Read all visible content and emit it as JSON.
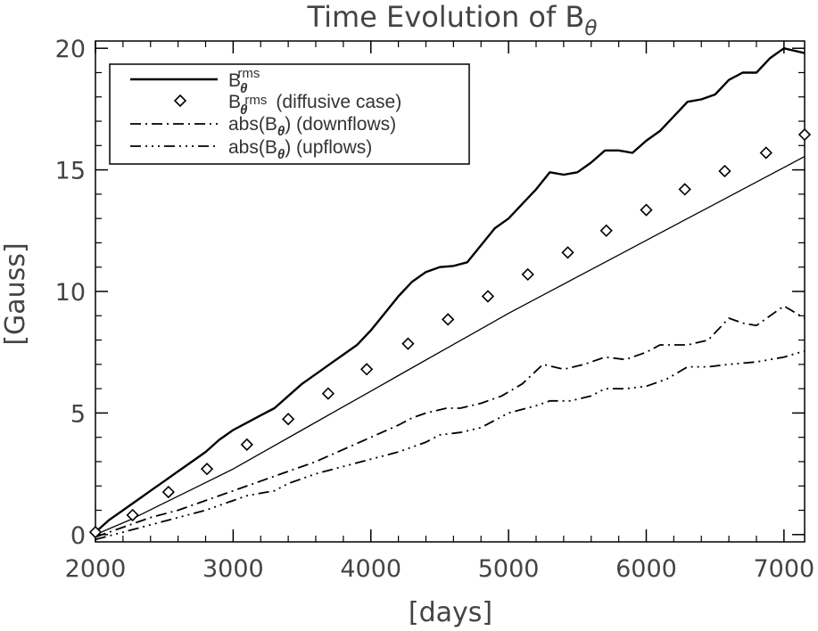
{
  "chart_data": {
    "type": "line",
    "title": "Time Evolution of B",
    "title_subscript": "θ",
    "xlabel": "[days]",
    "ylabel": "[Gauss]",
    "xlim": [
      2000,
      7150
    ],
    "ylim": [
      -0.3,
      20.3
    ],
    "x_ticks": [
      2000,
      3000,
      4000,
      5000,
      6000,
      7000
    ],
    "y_ticks": [
      0,
      5,
      10,
      15,
      20
    ],
    "x_tick_labels": [
      "2000",
      "3000",
      "4000",
      "5000",
      "6000",
      "7000"
    ],
    "y_tick_labels": [
      "0",
      "5",
      "10",
      "15",
      "20"
    ],
    "legend_position": "top-left",
    "series": [
      {
        "name": "B rms θ",
        "legend": {
          "base": "B",
          "sup": "rms",
          "sub": "θ",
          "suffix": ""
        },
        "style": "solid",
        "x": [
          2000,
          2100,
          2200,
          2300,
          2400,
          2500,
          2600,
          2700,
          2800,
          2900,
          3000,
          3100,
          3200,
          3300,
          3400,
          3500,
          3600,
          3700,
          3800,
          3900,
          4000,
          4100,
          4200,
          4300,
          4400,
          4500,
          4600,
          4700,
          4800,
          4900,
          5000,
          5100,
          5200,
          5300,
          5400,
          5500,
          5600,
          5700,
          5800,
          5900,
          6000,
          6100,
          6200,
          6300,
          6400,
          6500,
          6600,
          6700,
          6800,
          6900,
          7000,
          7150
        ],
        "y": [
          0.1,
          0.6,
          1.0,
          1.4,
          1.8,
          2.2,
          2.6,
          3.0,
          3.4,
          3.9,
          4.3,
          4.6,
          4.9,
          5.2,
          5.7,
          6.2,
          6.6,
          7.0,
          7.4,
          7.8,
          8.4,
          9.1,
          9.8,
          10.4,
          10.8,
          11.0,
          11.05,
          11.2,
          11.9,
          12.6,
          13.0,
          13.6,
          14.2,
          14.9,
          14.8,
          14.9,
          15.3,
          15.8,
          15.8,
          15.7,
          16.2,
          16.6,
          17.2,
          17.8,
          17.9,
          18.1,
          18.7,
          19.0,
          19.0,
          19.6,
          20.0,
          19.8
        ]
      },
      {
        "name": "B rms θ (diffusive case)",
        "legend": {
          "base": "B",
          "sup": "rms",
          "sub": "θ",
          "suffix": "(diffusive case)"
        },
        "style": "solid-thin-diamonds",
        "x": [
          2000,
          2250,
          2500,
          2750,
          3000,
          3250,
          3500,
          3750,
          4000,
          4250,
          4500,
          4750,
          5000,
          5250,
          5500,
          5750,
          6000,
          6250,
          6500,
          6750,
          7000,
          7150
        ],
        "y": [
          0.0,
          0.6,
          1.3,
          2.0,
          2.7,
          3.5,
          4.3,
          5.1,
          5.9,
          6.7,
          7.5,
          8.3,
          9.1,
          9.85,
          10.6,
          11.35,
          12.1,
          12.85,
          13.6,
          14.35,
          15.1,
          15.55
        ],
        "markers_x": [
          2000,
          2270,
          2530,
          2810,
          3100,
          3400,
          3690,
          3970,
          4270,
          4560,
          4850,
          5140,
          5430,
          5710,
          6000,
          6280,
          6570,
          6870,
          7150
        ],
        "markers_y": [
          0.1,
          0.8,
          1.75,
          2.7,
          3.7,
          4.75,
          5.8,
          6.8,
          7.85,
          8.85,
          9.8,
          10.7,
          11.6,
          12.5,
          13.35,
          14.2,
          14.95,
          15.7,
          16.45
        ]
      },
      {
        "name": "abs(B θ) (downflows)",
        "legend": {
          "base": "abs(B",
          "sup": "",
          "sub": "θ",
          "suffix": ") (downflows)"
        },
        "style": "dash-dot",
        "x": [
          2000,
          2200,
          2400,
          2600,
          2800,
          3000,
          3200,
          3400,
          3600,
          3800,
          4000,
          4200,
          4300,
          4400,
          4550,
          4650,
          4800,
          4950,
          5100,
          5250,
          5400,
          5550,
          5700,
          5850,
          6000,
          6100,
          6300,
          6450,
          6600,
          6700,
          6800,
          6950,
          7000,
          7150
        ],
        "y": [
          -0.1,
          0.3,
          0.7,
          1.0,
          1.4,
          1.8,
          2.2,
          2.6,
          3.0,
          3.5,
          4.0,
          4.5,
          4.8,
          5.0,
          5.2,
          5.2,
          5.4,
          5.7,
          6.2,
          7.0,
          6.8,
          7.0,
          7.3,
          7.2,
          7.5,
          7.8,
          7.8,
          8.0,
          8.9,
          8.7,
          8.6,
          9.2,
          9.4,
          8.9
        ]
      },
      {
        "name": "abs(B θ) (upflows)",
        "legend": {
          "base": "abs(B",
          "sup": "",
          "sub": "θ",
          "suffix": ") (upflows)"
        },
        "style": "dash-dot-dot-dot",
        "x": [
          2000,
          2200,
          2400,
          2600,
          2800,
          3000,
          3100,
          3200,
          3300,
          3400,
          3500,
          3600,
          3800,
          4000,
          4200,
          4400,
          4500,
          4650,
          4800,
          5000,
          5200,
          5300,
          5450,
          5600,
          5700,
          5850,
          6000,
          6150,
          6300,
          6450,
          6600,
          6800,
          7000,
          7150
        ],
        "y": [
          -0.2,
          0.1,
          0.4,
          0.7,
          1.0,
          1.4,
          1.6,
          1.7,
          1.8,
          2.1,
          2.3,
          2.5,
          2.8,
          3.1,
          3.4,
          3.8,
          4.1,
          4.2,
          4.4,
          5.0,
          5.3,
          5.5,
          5.5,
          5.7,
          6.0,
          6.0,
          6.1,
          6.4,
          6.9,
          6.9,
          7.0,
          7.1,
          7.3,
          7.55
        ]
      }
    ]
  }
}
